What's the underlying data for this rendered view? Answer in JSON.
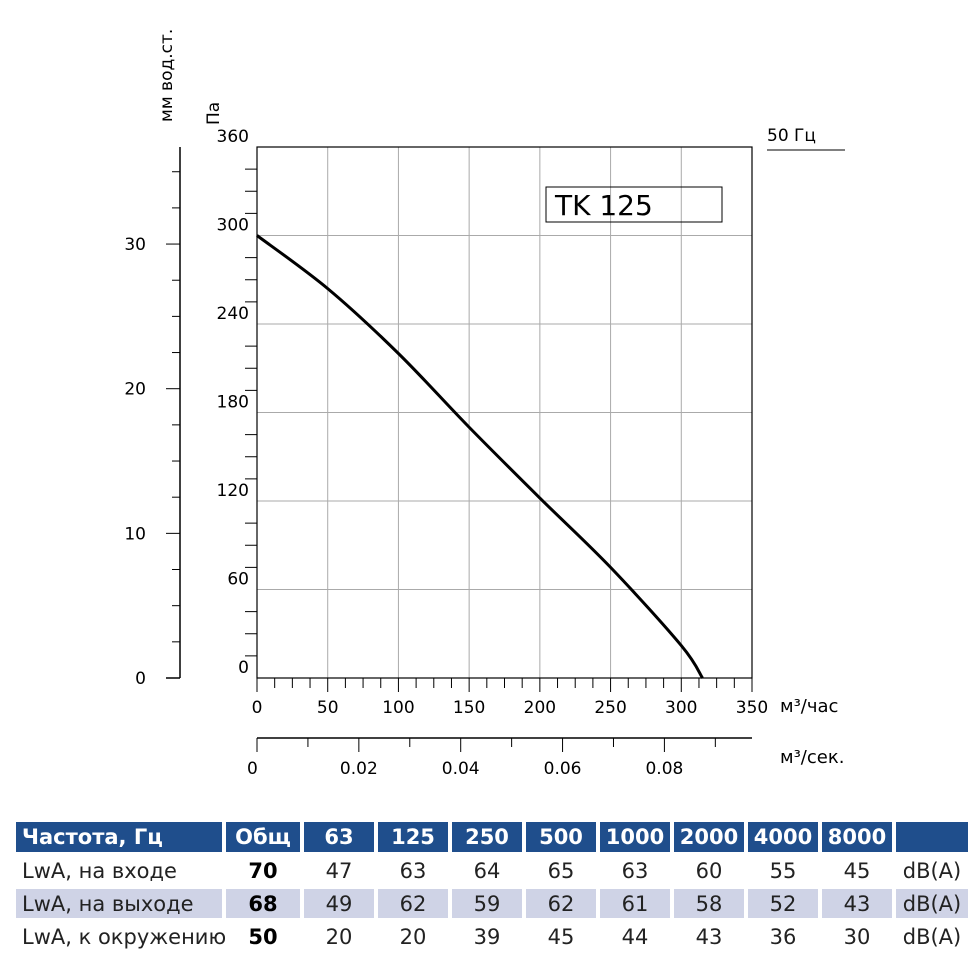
{
  "chart_data": {
    "type": "line",
    "title": "TK 125",
    "frequency_label": "50 Гц",
    "ylabel_pa": "Па",
    "ylabel_mm": "мм вод.ст.",
    "xlabel_m3h": "м³/час",
    "xlabel_m3s": "м³/сек.",
    "xlim": [
      0,
      350
    ],
    "ylim": [
      0,
      360
    ],
    "x_ticks": [
      "0",
      "50",
      "100",
      "150",
      "200",
      "250",
      "300",
      "350"
    ],
    "y_ticks": [
      "0",
      "60",
      "120",
      "180",
      "240",
      "300",
      "360"
    ],
    "mm_ticks": [
      "0",
      "10",
      "20",
      "30"
    ],
    "m3s_ticks": [
      "0",
      "0.02",
      "0.04",
      "0.06",
      "0.08"
    ],
    "series": [
      {
        "name": "TK 125",
        "x": [
          0,
          50,
          100,
          150,
          200,
          250,
          300,
          315
        ],
        "y": [
          300,
          264,
          220,
          170,
          122,
          75,
          22,
          0
        ]
      }
    ]
  },
  "table": {
    "headers": [
      "Частота, Гц",
      "Общ",
      "63",
      "125",
      "250",
      "500",
      "1000",
      "2000",
      "4000",
      "8000",
      ""
    ],
    "rows": [
      {
        "label": "LwA, на входе",
        "total": "70",
        "values": [
          "47",
          "63",
          "64",
          "65",
          "63",
          "60",
          "55",
          "45"
        ],
        "unit": "dB(A)"
      },
      {
        "label": "LwA, на выходе",
        "total": "68",
        "values": [
          "49",
          "62",
          "59",
          "62",
          "61",
          "58",
          "52",
          "43"
        ],
        "unit": "dB(A)"
      },
      {
        "label": "LwA, к окружению",
        "total": "50",
        "values": [
          "20",
          "20",
          "39",
          "45",
          "44",
          "43",
          "36",
          "30"
        ],
        "unit": "dB(A)"
      }
    ]
  },
  "colors": {
    "header_bg": "#1f4e8c",
    "row_shade": "#cfd3e6",
    "grid": "#aaaaaa",
    "curve": "#000000"
  }
}
